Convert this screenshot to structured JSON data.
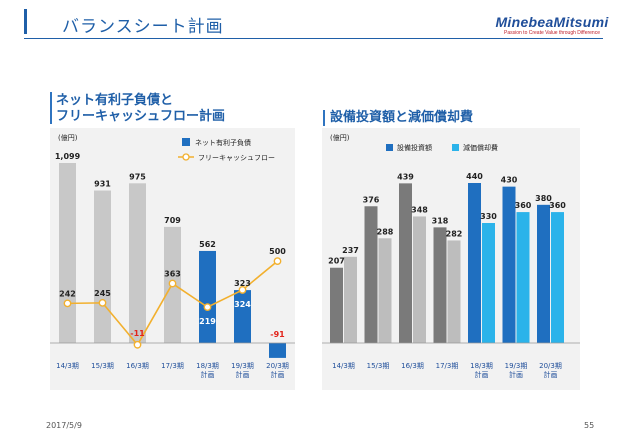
{
  "page": {
    "title": "バランスシート計画",
    "logo_name": "MinebeaMitsumi",
    "logo_tagline": "Passion to Create Value through Difference",
    "date": "2017/5/9",
    "page_number": "55"
  },
  "chart_data": [
    {
      "type": "bar",
      "title": "ネット有利子負債と フリーキャッシュフロー計画",
      "title_lines": [
        "ネット有利子負債と",
        "フリーキャッシュフロー計画"
      ],
      "ylabel": "(億円)",
      "categories": [
        "14/3期",
        "15/3期",
        "16/3期",
        "17/3期",
        "18/3期 計画",
        "19/3期 計画",
        "20/3期 計画"
      ],
      "category_lines": [
        [
          "14/3期"
        ],
        [
          "15/3期"
        ],
        [
          "16/3期"
        ],
        [
          "17/3期"
        ],
        [
          "18/3期",
          "計画"
        ],
        [
          "19/3期",
          "計画"
        ],
        [
          "20/3期",
          "計画"
        ]
      ],
      "series": [
        {
          "name": "ネット有利子負債",
          "type": "bar",
          "values": [
            1099,
            931,
            975,
            709,
            562,
            323,
            -91
          ],
          "labels": [
            "1,099",
            "931",
            "975",
            "709",
            "562",
            "323",
            "-91"
          ],
          "colors": [
            "#c8c8c8",
            "#c8c8c8",
            "#c8c8c8",
            "#c8c8c8",
            "#1f6fc0",
            "#1f6fc0",
            "#1f6fc0"
          ]
        },
        {
          "name": "フリーキャッシュフロー",
          "type": "line",
          "values": [
            242,
            245,
            -11,
            363,
            219,
            324,
            500
          ],
          "labels": [
            "242",
            "245",
            "-11",
            "363",
            "219",
            "324",
            "500"
          ]
        }
      ],
      "legend": [
        "ネット有利子負債",
        "フリーキャッシュフロー"
      ],
      "ylim": [
        -130,
        1200
      ]
    },
    {
      "type": "bar",
      "title": "設備投資額と減価償却費",
      "ylabel": "(億円)",
      "categories": [
        "14/3期",
        "15/3期",
        "16/3期",
        "17/3期",
        "18/3期 計画",
        "19/3期 計画",
        "20/3期 計画"
      ],
      "category_lines": [
        [
          "14/3期"
        ],
        [
          "15/3期"
        ],
        [
          "16/3期"
        ],
        [
          "17/3期"
        ],
        [
          "18/3期",
          "計画"
        ],
        [
          "19/3期",
          "計画"
        ],
        [
          "20/3期",
          "計画"
        ]
      ],
      "series": [
        {
          "name": "設備投資額",
          "values": [
            207,
            376,
            439,
            318,
            440,
            430,
            380
          ],
          "colors": [
            "#7a7a7a",
            "#7a7a7a",
            "#7a7a7a",
            "#7a7a7a",
            "#1f6fc0",
            "#1f6fc0",
            "#1f6fc0"
          ]
        },
        {
          "name": "減価償却費",
          "values": [
            237,
            288,
            348,
            282,
            330,
            360,
            360
          ],
          "colors": [
            "#bdbdbd",
            "#bdbdbd",
            "#bdbdbd",
            "#bdbdbd",
            "#2bb3ea",
            "#2bb3ea",
            "#2bb3ea"
          ]
        }
      ],
      "legend": [
        "設備投資額",
        "減価償却費"
      ],
      "ylim": [
        0,
        510
      ]
    }
  ],
  "colors": {
    "accent": "#1f5fa8",
    "negative": "#e2231a",
    "line": "#f2b02e"
  }
}
